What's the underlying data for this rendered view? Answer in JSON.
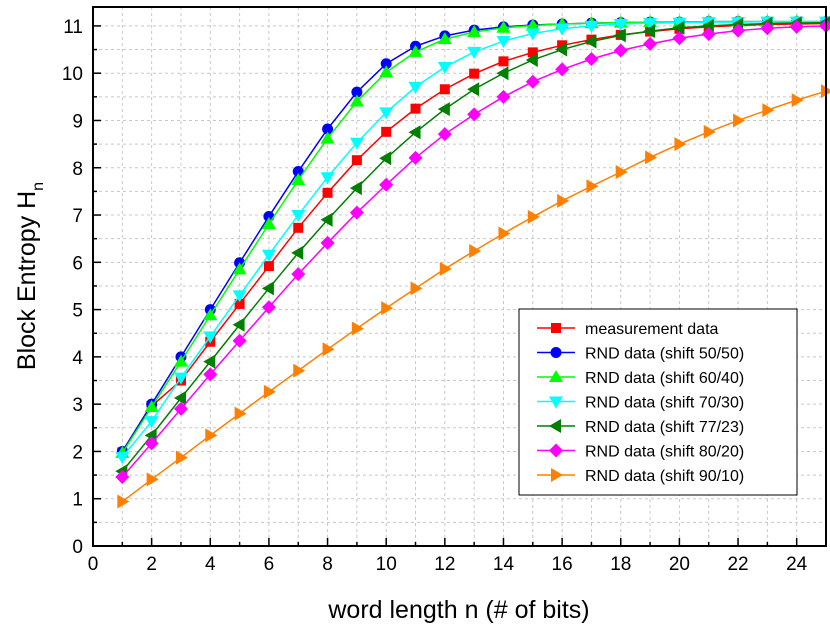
{
  "chart_data": {
    "type": "line",
    "xlabel": "word length n (# of bits)",
    "ylabel": "Block Entropy H",
    "ylabel_subscript": "n",
    "xlim": [
      0,
      25
    ],
    "ylim": [
      0,
      11.4
    ],
    "xticks": [
      0,
      2,
      4,
      6,
      8,
      10,
      12,
      14,
      16,
      18,
      20,
      22,
      24
    ],
    "yticks": [
      0,
      1,
      2,
      3,
      4,
      5,
      6,
      7,
      8,
      9,
      10,
      11
    ],
    "grid": true,
    "legend_position": "lower-right",
    "x": [
      1,
      2,
      3,
      4,
      5,
      6,
      7,
      8,
      9,
      10,
      11,
      12,
      13,
      14,
      15,
      16,
      17,
      18,
      19,
      20,
      21,
      22,
      23,
      24,
      25
    ],
    "series": [
      {
        "name": "measurement data",
        "color": "#ff0000",
        "marker": "square",
        "values": [
          1.98,
          2.96,
          3.5,
          4.32,
          5.12,
          5.92,
          6.73,
          7.47,
          8.16,
          8.76,
          9.25,
          9.66,
          9.99,
          10.25,
          10.44,
          10.59,
          10.71,
          10.81,
          10.88,
          10.94,
          10.98,
          11.01,
          11.03,
          11.04,
          11.05
        ]
      },
      {
        "name": "RND data (shift 50/50)",
        "color": "#0000ff",
        "marker": "circle",
        "values": [
          2.0,
          3.0,
          4.0,
          5.0,
          5.99,
          6.97,
          7.92,
          8.82,
          9.6,
          10.2,
          10.57,
          10.79,
          10.91,
          10.98,
          11.02,
          11.04,
          11.06,
          11.07,
          11.08,
          11.08,
          11.09,
          11.09,
          11.09,
          11.09,
          11.09
        ]
      },
      {
        "name": "RND data (shift 60/40)",
        "color": "#00ff00",
        "marker": "triangle-up",
        "values": [
          1.97,
          2.94,
          3.9,
          4.88,
          5.85,
          6.81,
          7.74,
          8.62,
          9.4,
          10.02,
          10.45,
          10.72,
          10.87,
          10.96,
          11.01,
          11.04,
          11.06,
          11.07,
          11.08,
          11.08,
          11.09,
          11.09,
          11.09,
          11.09,
          11.09
        ]
      },
      {
        "name": "RND data (shift 70/30)",
        "color": "#00ffff",
        "marker": "triangle-down",
        "values": [
          1.88,
          2.64,
          3.56,
          4.43,
          5.3,
          6.16,
          7.0,
          7.8,
          8.53,
          9.17,
          9.71,
          10.13,
          10.45,
          10.68,
          10.84,
          10.94,
          11.0,
          11.04,
          11.06,
          11.07,
          11.08,
          11.08,
          11.09,
          11.09,
          11.09
        ]
      },
      {
        "name": "RND data (shift 77/23)",
        "color": "#007f00",
        "marker": "triangle-left",
        "values": [
          1.58,
          2.34,
          3.13,
          3.9,
          4.68,
          5.45,
          6.2,
          6.9,
          7.57,
          8.2,
          8.75,
          9.24,
          9.66,
          10.0,
          10.28,
          10.5,
          10.67,
          10.8,
          10.89,
          10.96,
          11.0,
          11.03,
          11.05,
          11.06,
          11.07
        ]
      },
      {
        "name": "RND data (shift 80/20)",
        "color": "#ff00ff",
        "marker": "diamond",
        "values": [
          1.46,
          2.17,
          2.9,
          3.63,
          4.34,
          5.05,
          5.75,
          6.41,
          7.05,
          7.64,
          8.21,
          8.71,
          9.13,
          9.5,
          9.82,
          10.08,
          10.3,
          10.48,
          10.62,
          10.74,
          10.83,
          10.9,
          10.95,
          10.98,
          11.0
        ]
      },
      {
        "name": "RND data (shift 90/10)",
        "color": "#ff8000",
        "marker": "triangle-right",
        "values": [
          0.94,
          1.41,
          1.87,
          2.34,
          2.8,
          3.26,
          3.71,
          4.16,
          4.6,
          5.03,
          5.45,
          5.86,
          6.24,
          6.61,
          6.96,
          7.3,
          7.61,
          7.91,
          8.22,
          8.5,
          8.76,
          9.0,
          9.22,
          9.43,
          9.62
        ]
      }
    ]
  }
}
